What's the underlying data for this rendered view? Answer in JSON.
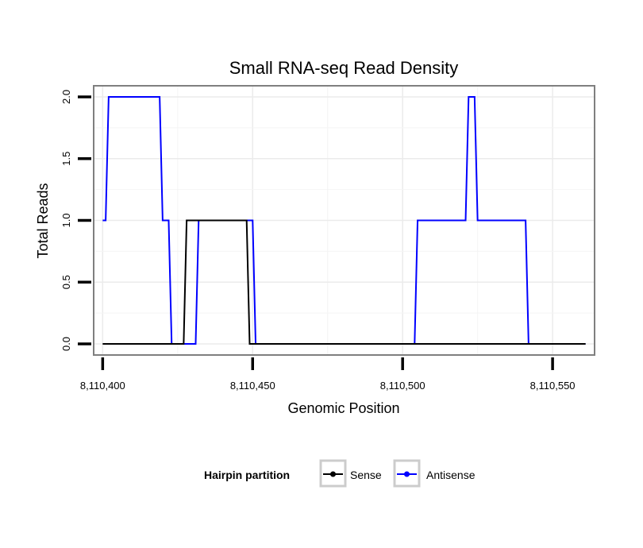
{
  "chart_data": {
    "type": "line",
    "title": "Small RNA-seq Read Density",
    "xlabel": "Genomic Position",
    "ylabel": "Total Reads",
    "xlim": [
      8110397,
      8110564
    ],
    "ylim": [
      -0.09,
      2.09
    ],
    "x_ticks": [
      {
        "value": 8110400,
        "label": "8,110,400"
      },
      {
        "value": 8110450,
        "label": "8,110,450"
      },
      {
        "value": 8110500,
        "label": "8,110,500"
      },
      {
        "value": 8110550,
        "label": "8,110,550"
      }
    ],
    "y_ticks": [
      {
        "value": 0.0,
        "label": "0.0"
      },
      {
        "value": 0.5,
        "label": "0.5"
      },
      {
        "value": 1.0,
        "label": "1.0"
      },
      {
        "value": 1.5,
        "label": "1.5"
      },
      {
        "value": 2.0,
        "label": "2.0"
      }
    ],
    "grid": true,
    "legend": {
      "title": "Hairpin partition",
      "position": "bottom"
    },
    "series": [
      {
        "name": "Sense",
        "color": "#000000",
        "points": [
          [
            8110400,
            0
          ],
          [
            8110427,
            0
          ],
          [
            8110428,
            1
          ],
          [
            8110448,
            1
          ],
          [
            8110449,
            0
          ],
          [
            8110561,
            0
          ]
        ]
      },
      {
        "name": "Antisense",
        "color": "#0000ff",
        "points": [
          [
            8110400,
            1
          ],
          [
            8110401,
            1
          ],
          [
            8110402,
            2
          ],
          [
            8110419,
            2
          ],
          [
            8110420,
            1
          ],
          [
            8110422,
            1
          ],
          [
            8110423,
            0
          ],
          [
            8110431,
            0
          ],
          [
            8110432,
            1
          ],
          [
            8110450,
            1
          ],
          [
            8110451,
            0
          ],
          [
            8110504,
            0
          ],
          [
            8110505,
            1
          ],
          [
            8110521,
            1
          ],
          [
            8110522,
            2
          ],
          [
            8110524,
            2
          ],
          [
            8110525,
            1
          ],
          [
            8110541,
            1
          ],
          [
            8110542,
            0
          ],
          [
            8110561,
            0
          ]
        ]
      }
    ]
  }
}
